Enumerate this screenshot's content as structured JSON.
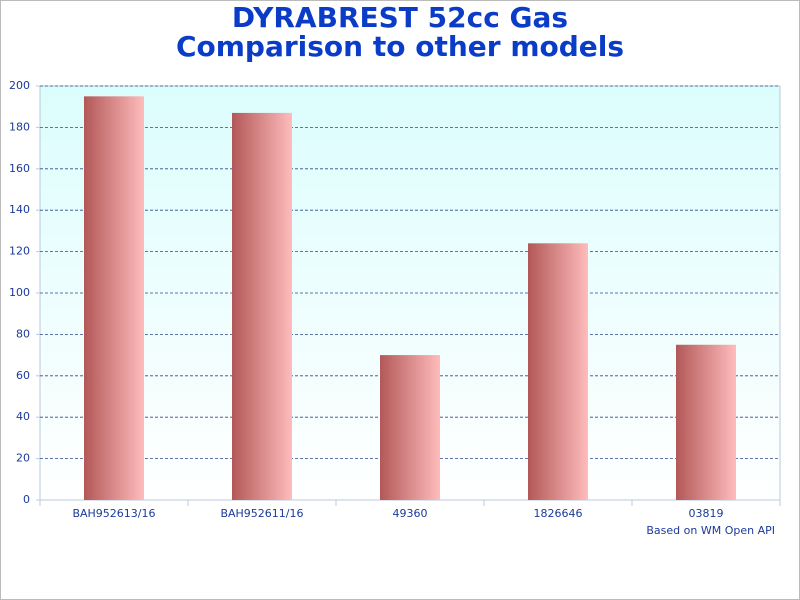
{
  "chart_data": {
    "type": "bar",
    "title": "DYRABREST 52cc Gas",
    "subtitle": "Comparison to other models",
    "note": "Based on WM Open API",
    "categories": [
      "BAH952613/16",
      "BAH952611/16",
      "49360",
      "1826646",
      "03819"
    ],
    "values": [
      195,
      187,
      70,
      124,
      75
    ],
    "color": [
      "#b35858",
      "#ffbcbc"
    ],
    "background": [
      "#dcfdfd",
      "#ffffff"
    ],
    "ylim": [
      0,
      200
    ],
    "yticks": [
      0,
      20,
      40,
      60,
      80,
      100,
      120,
      140,
      160,
      180,
      200
    ],
    "grid": true
  }
}
